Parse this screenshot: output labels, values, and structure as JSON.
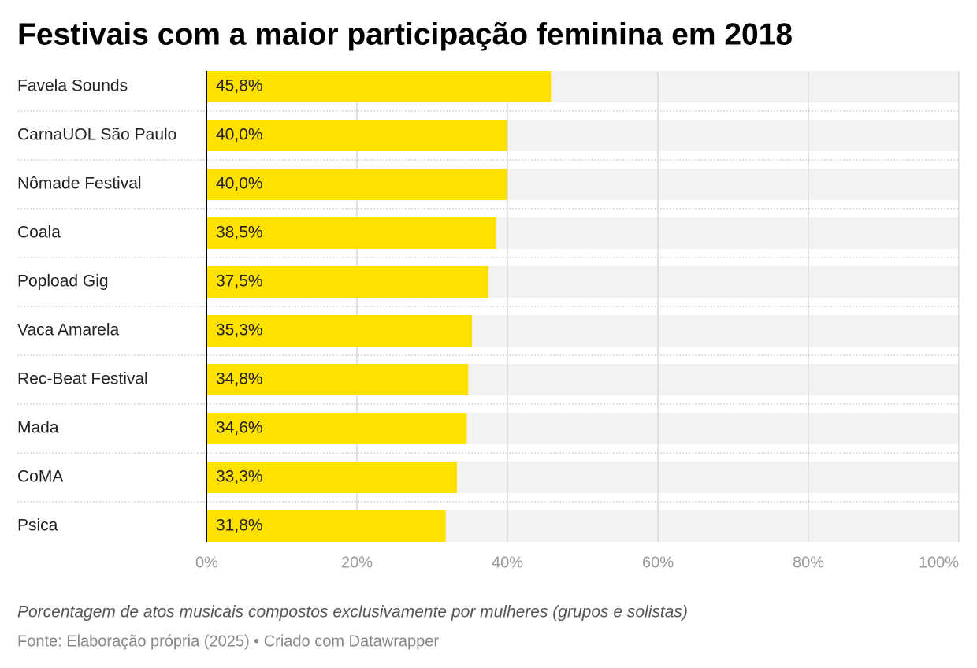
{
  "chart_data": {
    "type": "bar",
    "title": "Festivais com a maior participação feminina em 2018",
    "categories": [
      "Favela Sounds",
      "CarnaUOL São Paulo",
      "Nômade Festival",
      "Coala",
      "Popload Gig",
      "Vaca Amarela",
      "Rec-Beat Festival",
      "Mada",
      "CoMA",
      "Psica"
    ],
    "values": [
      45.8,
      40.0,
      40.0,
      38.5,
      37.5,
      35.3,
      34.8,
      34.6,
      33.3,
      31.8
    ],
    "value_labels": [
      "45,8%",
      "40,0%",
      "40,0%",
      "38,5%",
      "37,5%",
      "35,3%",
      "34,8%",
      "34,6%",
      "33,3%",
      "31,8%"
    ],
    "color": "#ffe100",
    "xlim": [
      0,
      100
    ],
    "xticks": [
      {
        "value": 0,
        "label": "0%"
      },
      {
        "value": 20,
        "label": "20%"
      },
      {
        "value": 40,
        "label": "40%"
      },
      {
        "value": 60,
        "label": "60%"
      },
      {
        "value": 80,
        "label": "80%"
      },
      {
        "value": 100,
        "label": "100%"
      }
    ],
    "grid": true,
    "note": "Porcentagem de atos musicais compostos exclusivamente por mulheres (grupos e solistas)",
    "source": "Fonte: Elaboração própria (2025) • Criado com Datawrapper"
  }
}
